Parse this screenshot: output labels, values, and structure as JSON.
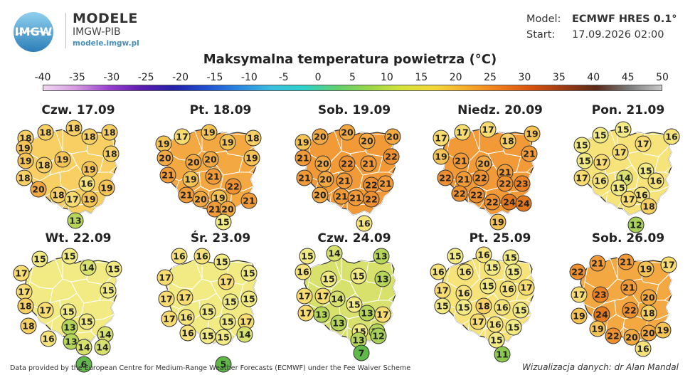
{
  "brand": {
    "title": "MODELE",
    "subtitle": "IMGW-PIB",
    "url": "modele.imgw.pl",
    "logo_text": "IMGW"
  },
  "meta": {
    "model_label": "Model:",
    "model_value": "ECMWF HRES 0.1°",
    "start_label": "Start:",
    "start_value": "17.09.2026 02:00"
  },
  "title": "Maksymalna temperatura powietrza (°C)",
  "scale": {
    "ticks": [
      "-40",
      "-35",
      "-30",
      "-25",
      "-20",
      "-15",
      "-10",
      "-5",
      "0",
      "5",
      "10",
      "15",
      "20",
      "25",
      "30",
      "35",
      "40",
      "45",
      "50"
    ],
    "colors": [
      "#f2d6f2",
      "#d49ae0",
      "#9b3fcf",
      "#5c1cb0",
      "#2420a8",
      "#1f4fd0",
      "#2b86e0",
      "#3bbde0",
      "#2ed0c8",
      "#5ccf6e",
      "#98d64a",
      "#d4e23c",
      "#f3d73a",
      "#f6ac2c",
      "#ef7b1a",
      "#d6520e",
      "#9c3a12",
      "#5a2a1a",
      "#7a7a7a",
      "#c8c8c8"
    ]
  },
  "temp_colors": {
    "5": "#5fb845",
    "6": "#62b84a",
    "7": "#5fba4a",
    "11": "#8cc84d",
    "12": "#a6d057",
    "13": "#b5d659",
    "14": "#d7e16c",
    "15": "#f2ea83",
    "16": "#f6e37a",
    "17": "#f8dc70",
    "18": "#f7cf62",
    "19": "#f6c355",
    "20": "#f3a842",
    "21": "#f19a37",
    "22": "#ee902f",
    "23": "#ea8126",
    "24": "#e4781f"
  },
  "days": [
    {
      "title": "Czw. 17.09",
      "values": [
        18,
        18,
        18,
        18,
        18,
        19,
        18,
        19,
        19,
        18,
        19,
        18,
        16,
        20,
        19,
        18,
        17,
        19,
        13
      ]
    },
    {
      "title": "Pt. 18.09",
      "values": [
        19,
        17,
        19,
        19,
        18,
        20,
        20,
        20,
        19,
        21,
        21,
        19,
        22,
        21,
        20,
        19,
        21,
        21,
        20,
        15
      ]
    },
    {
      "title": "Sob. 19.09",
      "values": [
        19,
        20,
        20,
        20,
        20,
        21,
        20,
        22,
        21,
        22,
        21,
        20,
        21,
        22,
        21,
        20,
        21,
        21,
        22,
        16
      ]
    },
    {
      "title": "Niedz. 20.09",
      "values": [
        17,
        17,
        17,
        18,
        19,
        19,
        21,
        20,
        21,
        21,
        22,
        21,
        22,
        22,
        23,
        22,
        22,
        22,
        24,
        24,
        19
      ]
    },
    {
      "title": "Pon. 21.09",
      "values": [
        15,
        15,
        15,
        17,
        16,
        15,
        17,
        17,
        14,
        15,
        17,
        16,
        15,
        16,
        16,
        17,
        18,
        12
      ]
    },
    {
      "title": "Wt. 22.09",
      "values": [
        15,
        15,
        17,
        14,
        15,
        17,
        15,
        18,
        17,
        15,
        18,
        13,
        15,
        16,
        14,
        13,
        14,
        14,
        6
      ]
    },
    {
      "title": "Śr. 23.09",
      "values": [
        16,
        16,
        15,
        17,
        17,
        15,
        17,
        17,
        15,
        15,
        17,
        16,
        15,
        15,
        17,
        16,
        15,
        15,
        14,
        5
      ]
    },
    {
      "title": "Czw. 24.09",
      "values": [
        15,
        14,
        13,
        16,
        15,
        15,
        13,
        17,
        17,
        14,
        15,
        17,
        13,
        13,
        17,
        13,
        15,
        13,
        13,
        12,
        7
      ]
    },
    {
      "title": "Pt. 25.09",
      "values": [
        15,
        16,
        15,
        16,
        16,
        15,
        15,
        17,
        16,
        15,
        16,
        17,
        15,
        15,
        18,
        16,
        15,
        17,
        16,
        15,
        15,
        11
      ]
    },
    {
      "title": "Sob. 26.09",
      "values": [
        22,
        21,
        21,
        19,
        17,
        17,
        23,
        21,
        20,
        19,
        24,
        22,
        18,
        19,
        22,
        20,
        20,
        19,
        16
      ]
    }
  ],
  "footer": {
    "credit": "Data provided by the European Centre for Medium-Range Weather Forecasts (ECMWF) under the Fee Waiver Scheme",
    "author": "Wizualizacja danych: dr Alan Mandal"
  }
}
